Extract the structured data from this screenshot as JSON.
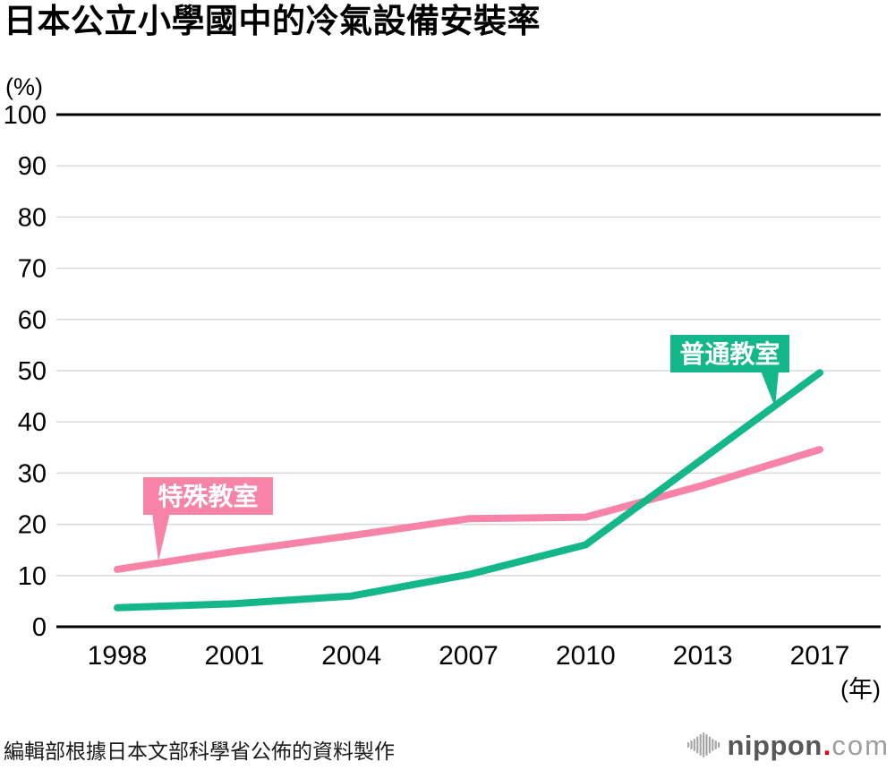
{
  "title": "日本公立小學國中的冷氣設備安裝率",
  "footer": {
    "source_note": "編輯部根據日本文部科學省公佈的資料製作"
  },
  "logo": {
    "brand": "nippon",
    "dot": ".",
    "suffix": "com",
    "brand_color": "#595757",
    "dot_color": "#e60012",
    "suffix_color": "#9e9e9e",
    "bars_color": "#a6a6a6"
  },
  "chart_data": {
    "type": "line",
    "title": "日本公立小學國中的冷氣設備安裝率",
    "x_labels": [
      "1998",
      "2001",
      "2004",
      "2007",
      "2010",
      "2013",
      "2017"
    ],
    "x_unit_label": "(年)",
    "y_unit_label": "(%)",
    "ylim": [
      0,
      100
    ],
    "y_tick_step": 10,
    "grid": true,
    "legend_position": "inline-badges",
    "axis_color": "#000000",
    "grid_color": "#d9d9d9",
    "tick_label_color": "#000000",
    "badge_text_color": "#ffffff",
    "series": [
      {
        "name": "普通教室",
        "color": "#14b78a",
        "values": [
          3.7,
          4.5,
          6.0,
          10.2,
          16.0,
          32.8,
          49.6
        ]
      },
      {
        "name": "特殊教室",
        "color": "#f784a6",
        "values": [
          11.2,
          14.7,
          17.8,
          21.1,
          21.4,
          27.6,
          34.6
        ]
      }
    ]
  }
}
